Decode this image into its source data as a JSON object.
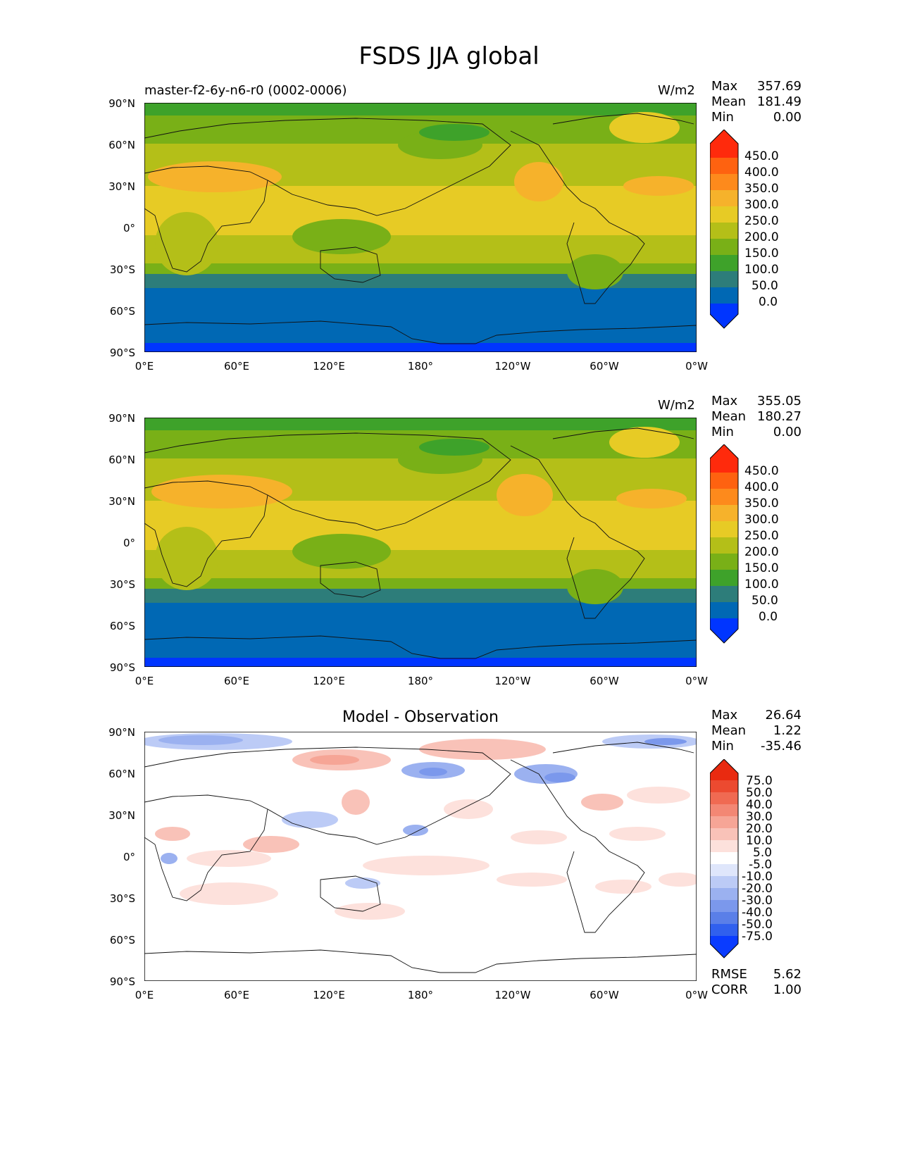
{
  "title": "FSDS JJA global",
  "panels": [
    {
      "subtitle": "master-f2-6y-n6-r0 (0002-0006)",
      "units": "W/m2",
      "stats": [
        {
          "label": "Max",
          "value": "357.69"
        },
        {
          "label": "Mean",
          "value": "181.49"
        },
        {
          "label": "Min",
          "value": "0.00"
        }
      ],
      "colorbar": [
        "450.0",
        "400.0",
        "350.0",
        "300.0",
        "250.0",
        "200.0",
        "150.0",
        "100.0",
        "50.0",
        "0.0"
      ]
    },
    {
      "subtitle": "",
      "units": "W/m2",
      "stats": [
        {
          "label": "Max",
          "value": "355.05"
        },
        {
          "label": "Mean",
          "value": "180.27"
        },
        {
          "label": "Min",
          "value": "0.00"
        }
      ],
      "colorbar": [
        "450.0",
        "400.0",
        "350.0",
        "300.0",
        "250.0",
        "200.0",
        "150.0",
        "100.0",
        "50.0",
        "0.0"
      ]
    },
    {
      "title": "Model - Observation",
      "stats": [
        {
          "label": "Max",
          "value": "26.64"
        },
        {
          "label": "Mean",
          "value": "1.22"
        },
        {
          "label": "Min",
          "value": "-35.46"
        }
      ],
      "colorbar": [
        "75.0",
        "50.0",
        "40.0",
        "30.0",
        "20.0",
        "10.0",
        "5.0",
        "-5.0",
        "-10.0",
        "-20.0",
        "-30.0",
        "-40.0",
        "-50.0",
        "-75.0"
      ],
      "metrics": [
        {
          "label": "RMSE",
          "value": "5.62"
        },
        {
          "label": "CORR",
          "value": "1.00"
        }
      ]
    }
  ],
  "axes": {
    "lat_ticks": [
      "90°N",
      "60°N",
      "30°N",
      "0°",
      "30°S",
      "60°S",
      "90°S"
    ],
    "lon_ticks": [
      "0°E",
      "60°E",
      "120°E",
      "180°",
      "120°W",
      "60°W",
      "0°W"
    ]
  },
  "colors": {
    "abs_levels": [
      "#0035ff",
      "#0068b4",
      "#2d7d7a",
      "#3ea22a",
      "#79b017",
      "#b4bf18",
      "#e7cb25",
      "#f6b22b",
      "#fd8a1c",
      "#fe6210",
      "#ff2a0c"
    ],
    "diff_levels": [
      "#0a3cff",
      "#3060ee",
      "#5a7fe8",
      "#7b98ec",
      "#9bb1f0",
      "#bccbf6",
      "#dfe6fb",
      "#ffffff",
      "#fde1dc",
      "#f9c2b8",
      "#f6a596",
      "#f38774",
      "#f06a52",
      "#ec4a30",
      "#e92a10"
    ]
  }
}
